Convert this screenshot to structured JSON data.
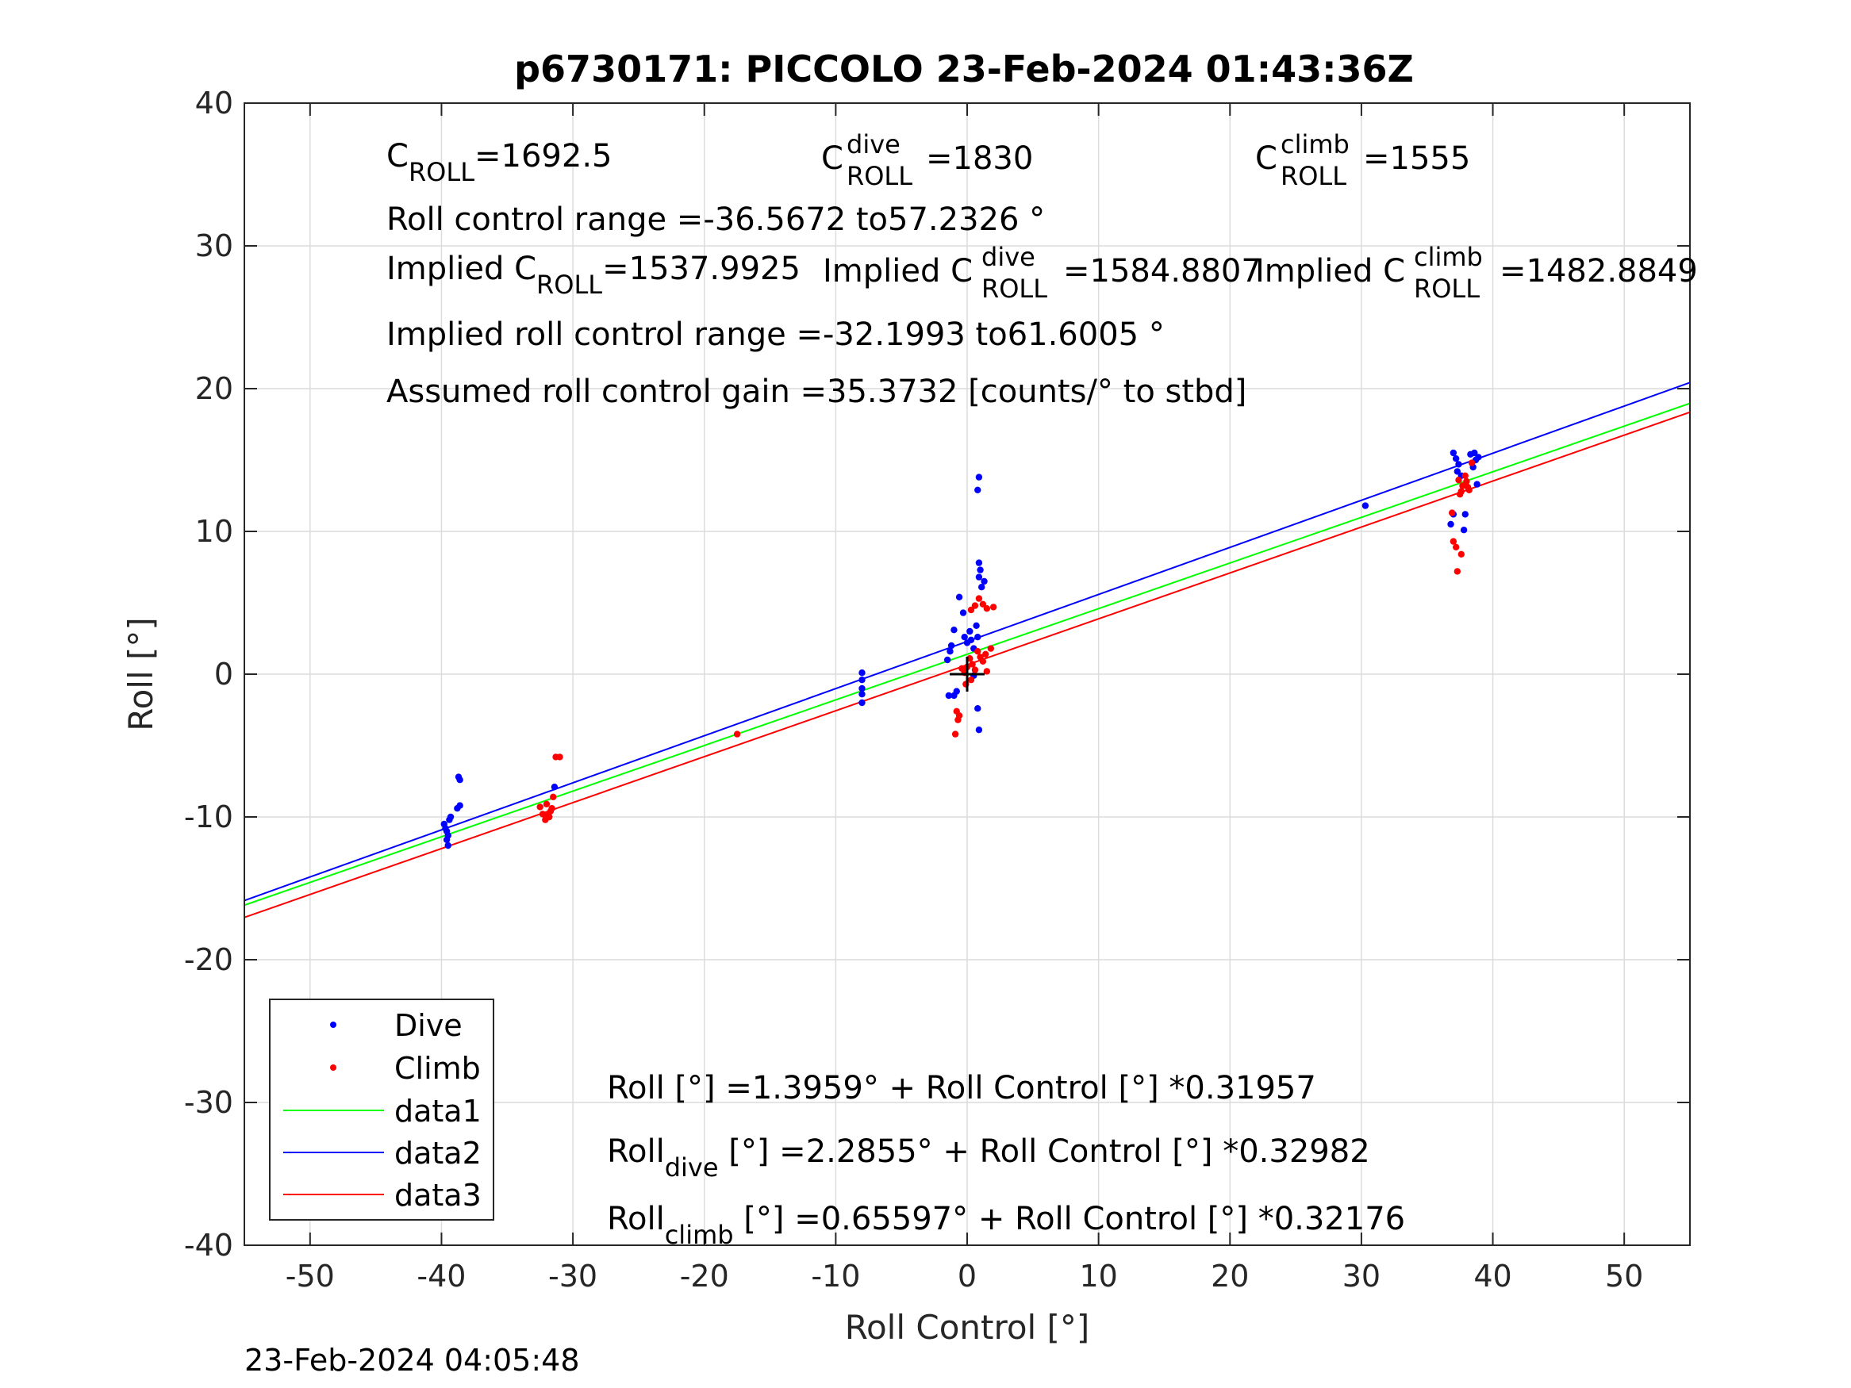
{
  "chart_data": {
    "type": "scatter",
    "title": "p6730171: PICCOLO 23-Feb-2024 01:43:36Z",
    "xlabel": "Roll Control [°]",
    "ylabel": "Roll [°]",
    "xlim": [
      -55,
      55
    ],
    "ylim": [
      -40,
      40
    ],
    "xticks": [
      -50,
      -40,
      -30,
      -20,
      -10,
      0,
      10,
      20,
      30,
      40,
      50
    ],
    "yticks": [
      -40,
      -30,
      -20,
      -10,
      0,
      10,
      20,
      30,
      40
    ],
    "grid": true,
    "legend_position": "bottom-left",
    "series": [
      {
        "name": "Dive",
        "kind": "points",
        "color": "#0000ff",
        "points": [
          [
            -39.8,
            -10.5
          ],
          [
            -39.6,
            -11.0
          ],
          [
            -39.5,
            -11.3
          ],
          [
            -39.7,
            -10.8
          ],
          [
            -39.4,
            -10.2
          ],
          [
            -39.6,
            -11.6
          ],
          [
            -39.5,
            -12.0
          ],
          [
            -39.3,
            -10.0
          ],
          [
            -38.8,
            -9.4
          ],
          [
            -38.6,
            -9.2
          ],
          [
            -38.7,
            -7.2
          ],
          [
            -38.6,
            -7.4
          ],
          [
            -31.4,
            -7.9
          ],
          [
            -8.0,
            0.1
          ],
          [
            -8.0,
            -0.4
          ],
          [
            -8.0,
            -1.0
          ],
          [
            -8.0,
            -1.4
          ],
          [
            -8.0,
            -2.0
          ],
          [
            -1.5,
            1.0
          ],
          [
            -1.3,
            1.6
          ],
          [
            -1.2,
            2.0
          ],
          [
            -1.0,
            3.1
          ],
          [
            -1.4,
            -1.5
          ],
          [
            -1.0,
            -1.5
          ],
          [
            -0.8,
            -1.2
          ],
          [
            -0.6,
            5.4
          ],
          [
            -0.3,
            4.3
          ],
          [
            -0.2,
            2.6
          ],
          [
            0.0,
            2.2
          ],
          [
            0.2,
            3.0
          ],
          [
            0.3,
            2.4
          ],
          [
            0.5,
            1.8
          ],
          [
            0.7,
            3.4
          ],
          [
            0.8,
            2.6
          ],
          [
            0.9,
            7.8
          ],
          [
            1.0,
            7.3
          ],
          [
            0.9,
            6.8
          ],
          [
            1.1,
            6.1
          ],
          [
            1.3,
            6.5
          ],
          [
            0.9,
            13.8
          ],
          [
            0.8,
            12.9
          ],
          [
            0.8,
            -2.4
          ],
          [
            0.9,
            -3.9
          ],
          [
            0.5,
            -0.1
          ],
          [
            30.3,
            11.8
          ],
          [
            37.0,
            15.5
          ],
          [
            37.2,
            15.1
          ],
          [
            37.4,
            14.7
          ],
          [
            37.3,
            14.2
          ],
          [
            37.6,
            13.9
          ],
          [
            38.3,
            15.4
          ],
          [
            38.6,
            15.5
          ],
          [
            38.9,
            15.2
          ],
          [
            38.7,
            15.0
          ],
          [
            37.0,
            11.2
          ],
          [
            36.8,
            10.5
          ],
          [
            37.9,
            11.2
          ],
          [
            37.8,
            10.1
          ],
          [
            38.5,
            14.5
          ],
          [
            38.8,
            13.3
          ]
        ]
      },
      {
        "name": "Climb",
        "kind": "points",
        "color": "#ff0000",
        "points": [
          [
            -32.5,
            -9.3
          ],
          [
            -32.3,
            -9.8
          ],
          [
            -32.1,
            -10.2
          ],
          [
            -31.9,
            -9.9
          ],
          [
            -31.7,
            -9.6
          ],
          [
            -32.0,
            -9.1
          ],
          [
            -31.8,
            -10.0
          ],
          [
            -31.6,
            -9.4
          ],
          [
            -31.3,
            -5.8
          ],
          [
            -31.0,
            -5.8
          ],
          [
            -31.5,
            -8.6
          ],
          [
            -17.5,
            -4.2
          ],
          [
            -0.8,
            -2.6
          ],
          [
            -0.7,
            -3.2
          ],
          [
            -0.6,
            -2.9
          ],
          [
            -0.9,
            -4.2
          ],
          [
            -0.4,
            0.4
          ],
          [
            -0.2,
            0.1
          ],
          [
            0.0,
            0.5
          ],
          [
            0.2,
            1.1
          ],
          [
            0.4,
            0.7
          ],
          [
            0.6,
            0.3
          ],
          [
            0.8,
            1.6
          ],
          [
            1.0,
            1.2
          ],
          [
            1.2,
            0.9
          ],
          [
            1.4,
            1.4
          ],
          [
            1.5,
            0.2
          ],
          [
            0.3,
            -0.4
          ],
          [
            -0.1,
            -0.7
          ],
          [
            0.3,
            4.5
          ],
          [
            0.6,
            4.8
          ],
          [
            0.9,
            5.3
          ],
          [
            1.2,
            4.9
          ],
          [
            1.5,
            4.6
          ],
          [
            2.0,
            4.7
          ],
          [
            1.8,
            1.8
          ],
          [
            37.0,
            9.3
          ],
          [
            37.2,
            8.9
          ],
          [
            37.6,
            8.4
          ],
          [
            37.3,
            7.2
          ],
          [
            36.9,
            11.3
          ],
          [
            37.5,
            12.6
          ],
          [
            37.7,
            13.2
          ],
          [
            38.0,
            13.5
          ],
          [
            38.2,
            12.9
          ],
          [
            37.9,
            13.9
          ],
          [
            37.4,
            13.6
          ],
          [
            38.4,
            14.8
          ],
          [
            37.6,
            12.8
          ],
          [
            38.1,
            13.1
          ]
        ]
      },
      {
        "name": "data1",
        "kind": "line",
        "color": "#00ff00",
        "intercept": 1.3959,
        "slope": 0.31957
      },
      {
        "name": "data2",
        "kind": "line",
        "color": "#0000ff",
        "intercept": 2.2855,
        "slope": 0.32982
      },
      {
        "name": "data3",
        "kind": "line",
        "color": "#ff0000",
        "intercept": 0.65597,
        "slope": 0.32176
      }
    ],
    "center_marker": {
      "x": 0,
      "y": 0,
      "color": "#000000"
    },
    "annotations": {
      "c_roll": {
        "main": "C",
        "sub": "ROLL",
        "value": "=1692.5"
      },
      "c_roll_dive": {
        "main": "C",
        "sup": "dive",
        "sub": "ROLL",
        "value": "=1830"
      },
      "c_roll_climb": {
        "main": "C",
        "sup": "climb",
        "sub": "ROLL",
        "value": "=1555"
      },
      "roll_control_range": "Roll control range =-36.5672 to57.2326 °",
      "implied_c_roll": {
        "main": "Implied C",
        "sub": "ROLL",
        "value": "=1537.9925"
      },
      "implied_c_roll_dive": {
        "main": "Implied C",
        "sup": "dive",
        "sub": "ROLL",
        "value": "=1584.8807"
      },
      "implied_c_roll_climb": {
        "main": "Implied C",
        "sup": "climb",
        "sub": "ROLL",
        "value": "=1482.8849"
      },
      "implied_roll_control_range": "Implied roll control range =-32.1993 to61.6005 °",
      "assumed_gain": "Assumed roll control gain =35.3732 [counts/° to stbd]",
      "fit_all": "Roll [°] =1.3959° + Roll Control [°] *0.31957",
      "fit_dive": {
        "main": "Roll",
        "sub": "dive",
        "value": " [°] =2.2855° + Roll Control [°] *0.32982"
      },
      "fit_climb": {
        "main": "Roll",
        "sub": "climb",
        "value": " [°] =0.65597° + Roll Control [°] *0.32176"
      }
    }
  },
  "footer_timestamp": "23-Feb-2024 04:05:48"
}
